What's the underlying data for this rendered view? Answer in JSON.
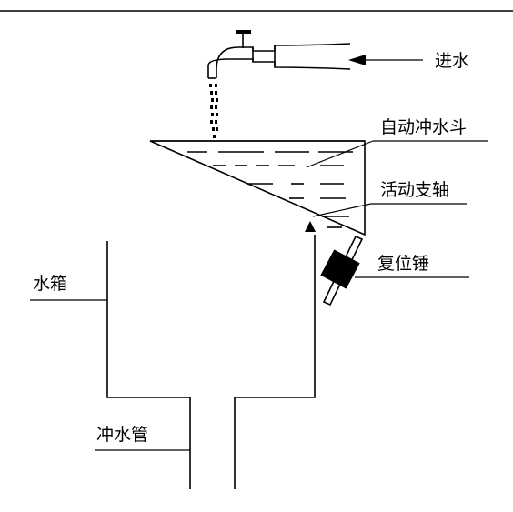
{
  "diagram": {
    "labels": {
      "inlet": "进水",
      "bucket": "自动冲水斗",
      "pivot": "活动支轴",
      "counterweight": "复位锤",
      "tank": "水箱",
      "flush_pipe": "冲水管"
    },
    "colors": {
      "line": "#000000",
      "background": "#ffffff"
    }
  }
}
